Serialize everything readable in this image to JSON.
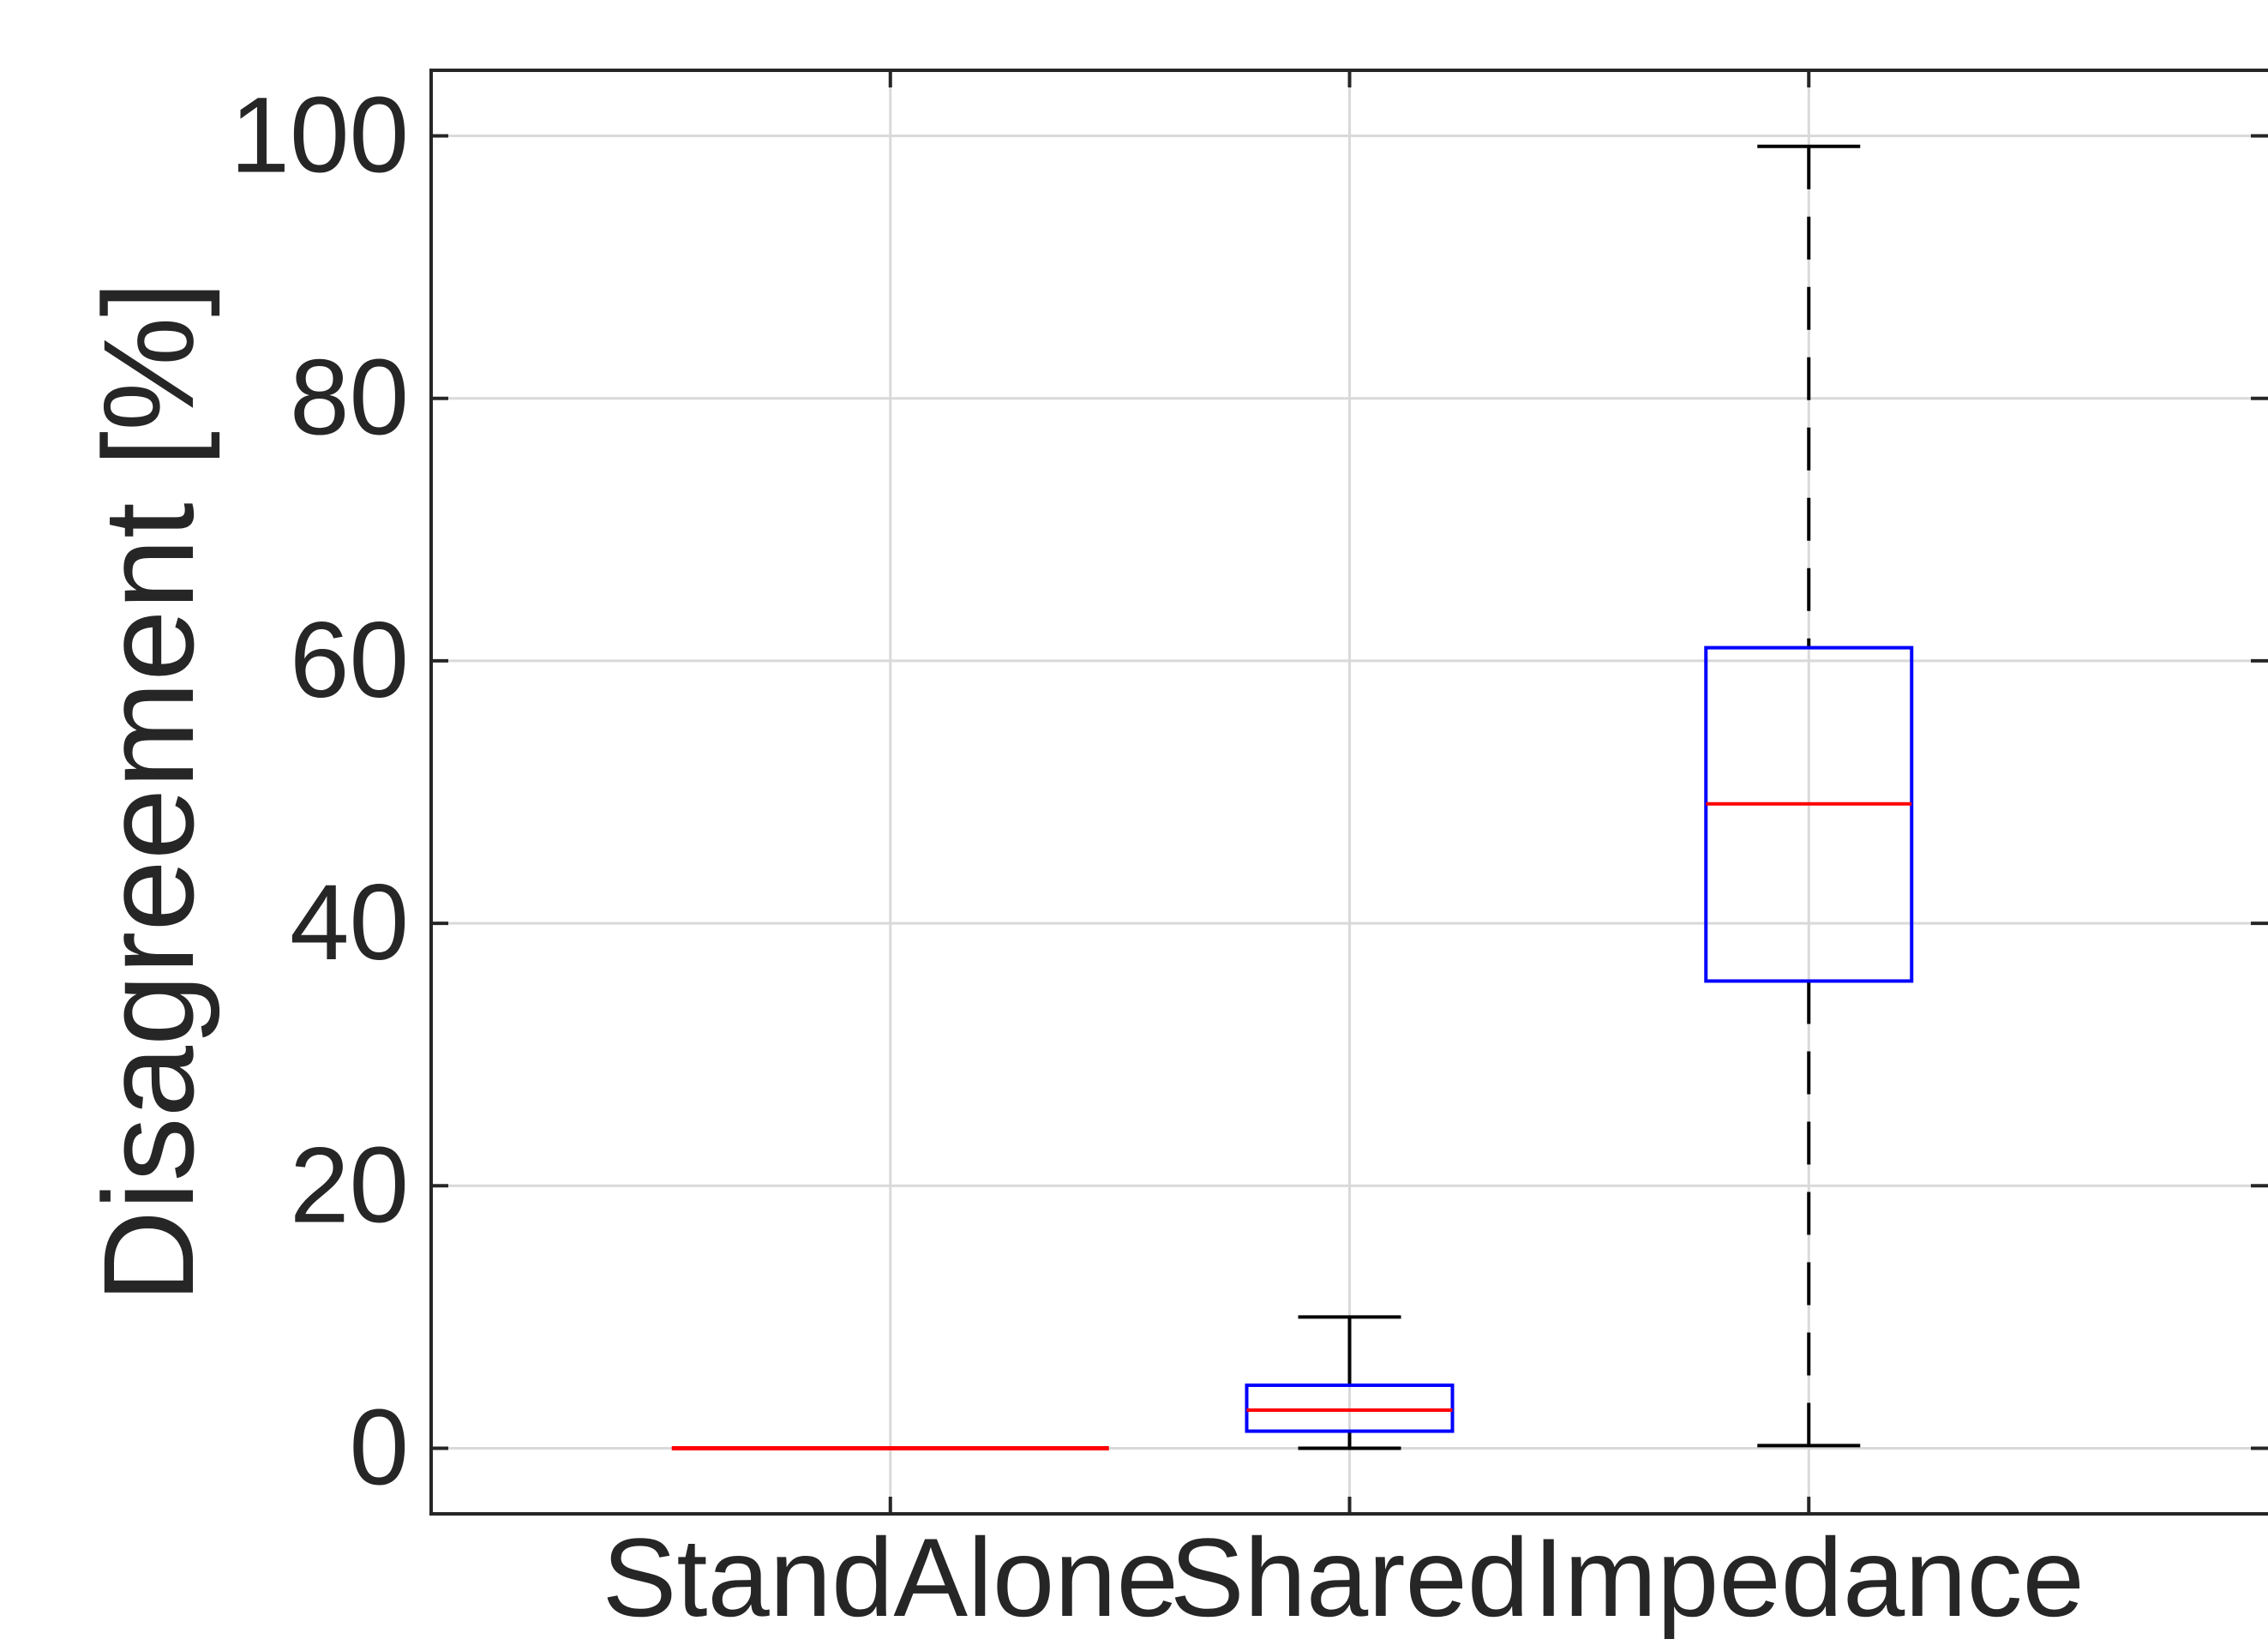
{
  "chart_data": {
    "type": "box",
    "title": "",
    "xlabel": "",
    "ylabel": "Disagreement [%]",
    "ylim": [
      -5,
      105
    ],
    "yticks": [
      0,
      20,
      40,
      60,
      80,
      100
    ],
    "ytick_labels": [
      "0",
      "20",
      "40",
      "60",
      "80",
      "100"
    ],
    "grid": true,
    "categories": [
      "StandAlone",
      "Shared",
      "Impedance"
    ],
    "boxes": [
      {
        "category": "StandAlone",
        "min": 0,
        "q1": 0,
        "median": 0,
        "q3": 0,
        "max": 0
      },
      {
        "category": "Shared",
        "min": 0,
        "q1": 1.3,
        "median": 2.9,
        "q3": 4.8,
        "max": 10
      },
      {
        "category": "Impedance",
        "min": 0.2,
        "q1": 35.6,
        "median": 49.1,
        "q3": 61,
        "max": 99.2
      }
    ],
    "colors": {
      "box": "#0000ff",
      "median": "#ff0000",
      "whisker": "#000000",
      "grid": "#d9d9d9",
      "axis": "#262626"
    }
  }
}
